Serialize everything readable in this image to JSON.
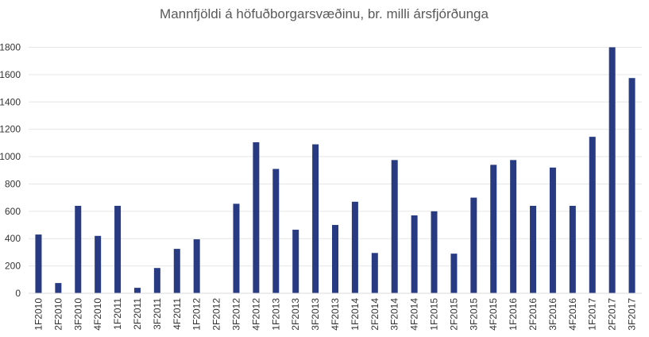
{
  "chart_data": {
    "type": "bar",
    "title": "Mannfjöldi á höfuðborgarsvæðinu, br. milli ársfjórðunga",
    "xlabel": "",
    "ylabel": "",
    "ylim": [
      0,
      1800
    ],
    "yticks": [
      "0",
      "200",
      "400",
      "600",
      "800",
      "1000",
      "1200",
      "1400",
      "1600",
      "1800"
    ],
    "grid": true,
    "legend": "none",
    "bar_color": "#283b82",
    "categories": [
      "1F2010",
      "2F2010",
      "3F2010",
      "4F2010",
      "1F2011",
      "2F2011",
      "3F2011",
      "4F2011",
      "1F2012",
      "2F2012",
      "3F2012",
      "4F2012",
      "1F2013",
      "2F2013",
      "3F2013",
      "4F2013",
      "1F2014",
      "2F2014",
      "3F2014",
      "4F2014",
      "1F2015",
      "2F2015",
      "3F2015",
      "4F2015",
      "1F2016",
      "2F2016",
      "3F2016",
      "4F2016",
      "1F2017",
      "2F2017",
      "3F2017"
    ],
    "values": [
      430,
      75,
      640,
      420,
      640,
      40,
      185,
      325,
      395,
      0,
      655,
      1105,
      910,
      465,
      1090,
      500,
      670,
      295,
      975,
      570,
      600,
      290,
      700,
      940,
      975,
      640,
      920,
      640,
      1145,
      1800,
      1575
    ]
  }
}
